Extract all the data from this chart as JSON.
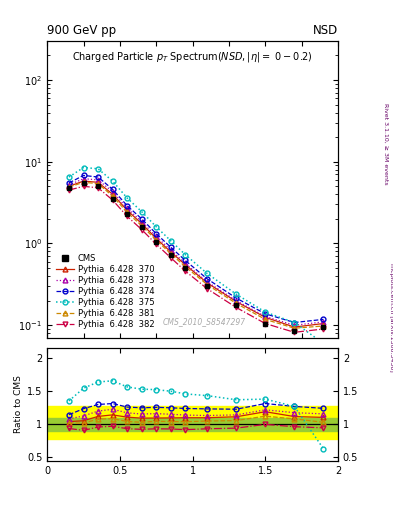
{
  "pt_x": [
    0.15,
    0.25,
    0.35,
    0.45,
    0.55,
    0.65,
    0.75,
    0.85,
    0.95,
    1.1,
    1.3,
    1.5,
    1.7,
    1.9
  ],
  "cms_y": [
    4.8,
    5.5,
    5.0,
    3.5,
    2.3,
    1.6,
    1.05,
    0.72,
    0.5,
    0.3,
    0.175,
    0.105,
    0.085,
    0.095
  ],
  "py370_y": [
    5.0,
    5.8,
    5.6,
    4.0,
    2.55,
    1.75,
    1.15,
    0.79,
    0.55,
    0.33,
    0.195,
    0.125,
    0.095,
    0.105
  ],
  "py373_y": [
    5.2,
    6.2,
    6.0,
    4.3,
    2.7,
    1.85,
    1.22,
    0.83,
    0.57,
    0.34,
    0.2,
    0.128,
    0.1,
    0.11
  ],
  "py374_y": [
    5.5,
    6.8,
    6.5,
    4.6,
    2.9,
    2.0,
    1.32,
    0.9,
    0.62,
    0.37,
    0.215,
    0.138,
    0.108,
    0.118
  ],
  "py375_y": [
    6.5,
    8.5,
    8.2,
    5.8,
    3.6,
    2.45,
    1.6,
    1.08,
    0.73,
    0.43,
    0.24,
    0.145,
    0.108,
    0.06
  ],
  "py381_y": [
    4.9,
    5.6,
    5.4,
    3.8,
    2.4,
    1.65,
    1.1,
    0.75,
    0.52,
    0.315,
    0.185,
    0.118,
    0.092,
    0.098
  ],
  "py382_y": [
    4.5,
    5.0,
    4.8,
    3.4,
    2.15,
    1.48,
    0.98,
    0.67,
    0.46,
    0.28,
    0.165,
    0.105,
    0.082,
    0.09
  ],
  "green_band": [
    0.9,
    1.1
  ],
  "yellow_band": [
    0.78,
    1.28
  ],
  "colors": {
    "cms": "#000000",
    "py370": "#cc2200",
    "py373": "#aa00aa",
    "py374": "#0000cc",
    "py375": "#00bbbb",
    "py381": "#cc8800",
    "py382": "#cc0044"
  },
  "top_left": "900 GeV pp",
  "top_right": "NSD",
  "watermark": "CMS_2010_S8547297",
  "right_text1": "Rivet 3.1.10, ≥ 3M events",
  "right_text2": "mcplots.cern.ch [arXiv:1306.3436]"
}
